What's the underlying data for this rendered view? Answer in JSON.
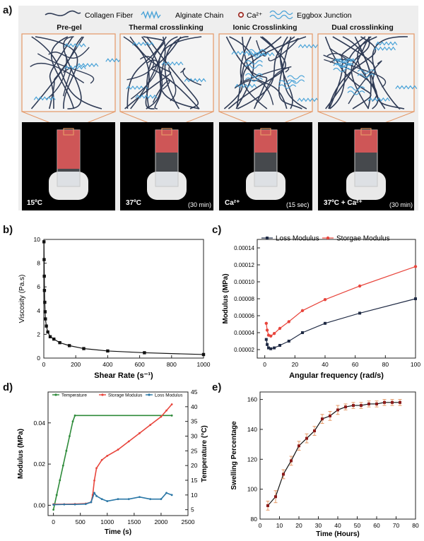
{
  "panel_labels": {
    "a": "a)",
    "b": "b)",
    "c": "c)",
    "d": "d)",
    "e": "e)"
  },
  "legend_a": {
    "collagen": "Collagen Fiber",
    "alginate": "Alginate  Chain",
    "calcium": "Ca²⁺",
    "eggbox": "Eggbox Junction"
  },
  "states": [
    {
      "title": "Pre-gel",
      "condition": "15ºC",
      "time": ""
    },
    {
      "title": "Thermal crosslinking",
      "condition": "37ºC",
      "time": "(30 min)"
    },
    {
      "title": "Ionic Crosslinking",
      "condition": "Ca²⁺",
      "time": "(15 sec)"
    },
    {
      "title": "Dual crosslinking",
      "condition": "37ºC  + Ca²⁺",
      "time": "(30 min)"
    }
  ],
  "colors": {
    "collagen": "#2f3b55",
    "alginate": "#4aa3d8",
    "accent": "#e59866",
    "loss": "#1f2a44",
    "storage": "#e8453c",
    "temperature": "#2e8b3a",
    "loss_d": "#2a77a6",
    "swelling": "#8b1a1a"
  },
  "chart_data": [
    {
      "id": "b",
      "type": "line",
      "xlabel": "Shear Rate (s⁻¹)",
      "ylabel": "Viscosity (Pa.s)",
      "xlim": [
        0,
        1000
      ],
      "ylim": [
        0,
        10
      ],
      "xticks": [
        0,
        200,
        400,
        600,
        800,
        1000
      ],
      "yticks": [
        0,
        2,
        4,
        6,
        8,
        10
      ],
      "x": [
        1,
        2,
        3,
        4,
        6,
        8,
        10,
        16,
        25,
        40,
        63,
        100,
        160,
        250,
        400,
        630,
        1000
      ],
      "y": [
        9.8,
        8.3,
        6.9,
        5.7,
        4.7,
        3.9,
        3.3,
        2.7,
        2.2,
        1.8,
        1.6,
        1.3,
        1.05,
        0.8,
        0.6,
        0.45,
        0.3
      ]
    },
    {
      "id": "c",
      "type": "line",
      "xlabel": "Angular frequency (rad/s)",
      "ylabel": "Modulus (MPa)",
      "xlim": [
        -5,
        100
      ],
      "ylim": [
        1e-05,
        0.00015
      ],
      "xticks": [
        0,
        20,
        40,
        60,
        80,
        100
      ],
      "yticks": [
        "0.00002",
        "0.00004",
        "0.00006",
        "0.00008",
        "0.00010",
        "0.00012",
        "0.00014"
      ],
      "ytick_values": [
        2e-05,
        4e-05,
        6e-05,
        8e-05,
        0.0001,
        0.00012,
        0.00014
      ],
      "legend": "top-left",
      "series": [
        {
          "name": "Loss Modulus",
          "x": [
            1,
            1.6,
            2.5,
            4,
            6.3,
            10,
            16,
            25,
            40,
            63,
            100
          ],
          "y": [
            3.2e-05,
            2.6e-05,
            2.2e-05,
            2.1e-05,
            2.2e-05,
            2.5e-05,
            3e-05,
            4e-05,
            5.1e-05,
            6.3e-05,
            8e-05
          ]
        },
        {
          "name": "Storgae Modulus",
          "x": [
            1,
            1.6,
            2.5,
            4,
            6.3,
            10,
            16,
            25,
            40,
            63,
            100
          ],
          "y": [
            5.1e-05,
            4.3e-05,
            3.7e-05,
            3.6e-05,
            3.9e-05,
            4.5e-05,
            5.3e-05,
            6.6e-05,
            7.9e-05,
            9.5e-05,
            0.000118
          ]
        }
      ]
    },
    {
      "id": "d",
      "type": "line",
      "xlabel": "Time (s)",
      "ylabel": "Modulus (MPa)",
      "y2label": "Temperature (°C)",
      "xlim": [
        -100,
        2500
      ],
      "ylim": [
        -0.005,
        0.055
      ],
      "y2lim": [
        3,
        45
      ],
      "xticks": [
        0,
        500,
        1000,
        1500,
        2000,
        2500
      ],
      "yticks": [
        0.0,
        0.02,
        0.04
      ],
      "ytick_labels": [
        "0.00",
        "0.02",
        "0.04"
      ],
      "y2ticks": [
        5,
        10,
        15,
        20,
        25,
        30,
        35,
        40,
        45
      ],
      "legend": "top",
      "series": [
        {
          "name": "Temperature",
          "axis": "right",
          "x": [
            0,
            60,
            120,
            180,
            240,
            300,
            360,
            400,
            2200
          ],
          "y": [
            5,
            10,
            15,
            20,
            25,
            30,
            35,
            37,
            37
          ]
        },
        {
          "name": "Storage Modulus",
          "axis": "left",
          "x": [
            0,
            200,
            400,
            600,
            700,
            730,
            760,
            800,
            900,
            1000,
            1200,
            1400,
            1600,
            1800,
            2000,
            2100,
            2200
          ],
          "y": [
            0.0005,
            0.0005,
            0.0006,
            0.0008,
            0.0015,
            0.005,
            0.012,
            0.018,
            0.022,
            0.024,
            0.027,
            0.031,
            0.035,
            0.039,
            0.043,
            0.046,
            0.049
          ]
        },
        {
          "name": "Loss Modulus",
          "axis": "left",
          "x": [
            0,
            200,
            400,
            600,
            700,
            760,
            800,
            900,
            1000,
            1200,
            1400,
            1600,
            1800,
            2000,
            2100,
            2200
          ],
          "y": [
            0.0003,
            0.0004,
            0.0004,
            0.0006,
            0.0015,
            0.006,
            0.0045,
            0.003,
            0.002,
            0.003,
            0.003,
            0.004,
            0.003,
            0.003,
            0.006,
            0.005
          ]
        }
      ]
    },
    {
      "id": "e",
      "type": "line",
      "xlabel": "Time (Hours)",
      "ylabel": "Swelling Percentage",
      "xlim": [
        0,
        80
      ],
      "ylim": [
        80,
        165
      ],
      "xticks": [
        0,
        10,
        20,
        30,
        40,
        50,
        60,
        70,
        80
      ],
      "yticks": [
        80,
        100,
        120,
        140,
        160
      ],
      "x": [
        4,
        8,
        12,
        16,
        20,
        24,
        28,
        32,
        36,
        40,
        44,
        48,
        52,
        56,
        60,
        64,
        68,
        72
      ],
      "y": [
        89,
        95,
        110,
        119,
        129,
        134,
        139,
        147,
        149,
        153,
        155,
        156,
        156,
        157,
        157,
        158,
        158,
        158
      ],
      "err": [
        3,
        4,
        3,
        3,
        3,
        3,
        3,
        3,
        3,
        3,
        2,
        2,
        2,
        2,
        2,
        2,
        2,
        2
      ]
    }
  ]
}
